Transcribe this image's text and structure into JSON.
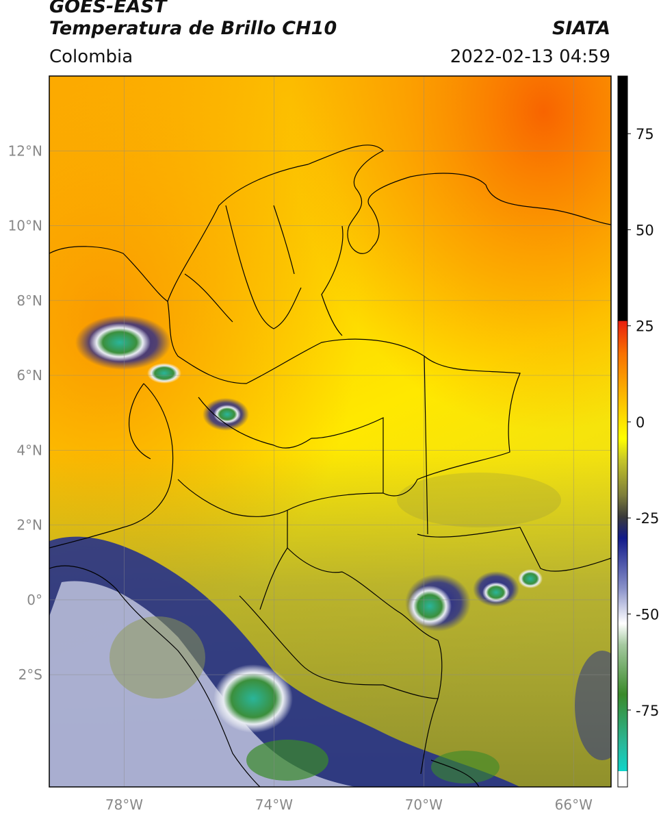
{
  "header": {
    "satellite": "GOES-EAST",
    "product": "Temperatura de Brillo CH10",
    "region": "Colombia",
    "agency": "SIATA",
    "datetime": "2022-02-13 04:59"
  },
  "map": {
    "lon_range": [
      -80,
      -65
    ],
    "lat_range": [
      -5,
      14
    ],
    "lon_ticks": [
      "78°W",
      "74°W",
      "70°W",
      "66°W"
    ],
    "lon_values": [
      -78,
      -74,
      -70,
      -66
    ],
    "lat_ticks": [
      "12°N",
      "10°N",
      "8°N",
      "6°N",
      "4°N",
      "2°N",
      "0°",
      "2°S"
    ],
    "lat_values": [
      12,
      10,
      8,
      6,
      4,
      2,
      0,
      -2
    ],
    "gridlines": true
  },
  "colorbar": {
    "range": [
      -95,
      90
    ],
    "tick_labels": [
      "75",
      "50",
      "25",
      "0",
      "-25",
      "-50",
      "-75"
    ],
    "tick_values": [
      75,
      50,
      25,
      0,
      -25,
      -50,
      -75
    ],
    "colors": {
      "warm": "#000000",
      "red": "#e8200e",
      "orange": "#fa8c00",
      "yellow": "#ffff00",
      "olive": "#7d7d3a",
      "navy": "#111a8a",
      "white": "#ffffff",
      "green": "#3a8a2a",
      "teal": "#2ab89a",
      "cyan": "#00e5e5"
    }
  }
}
